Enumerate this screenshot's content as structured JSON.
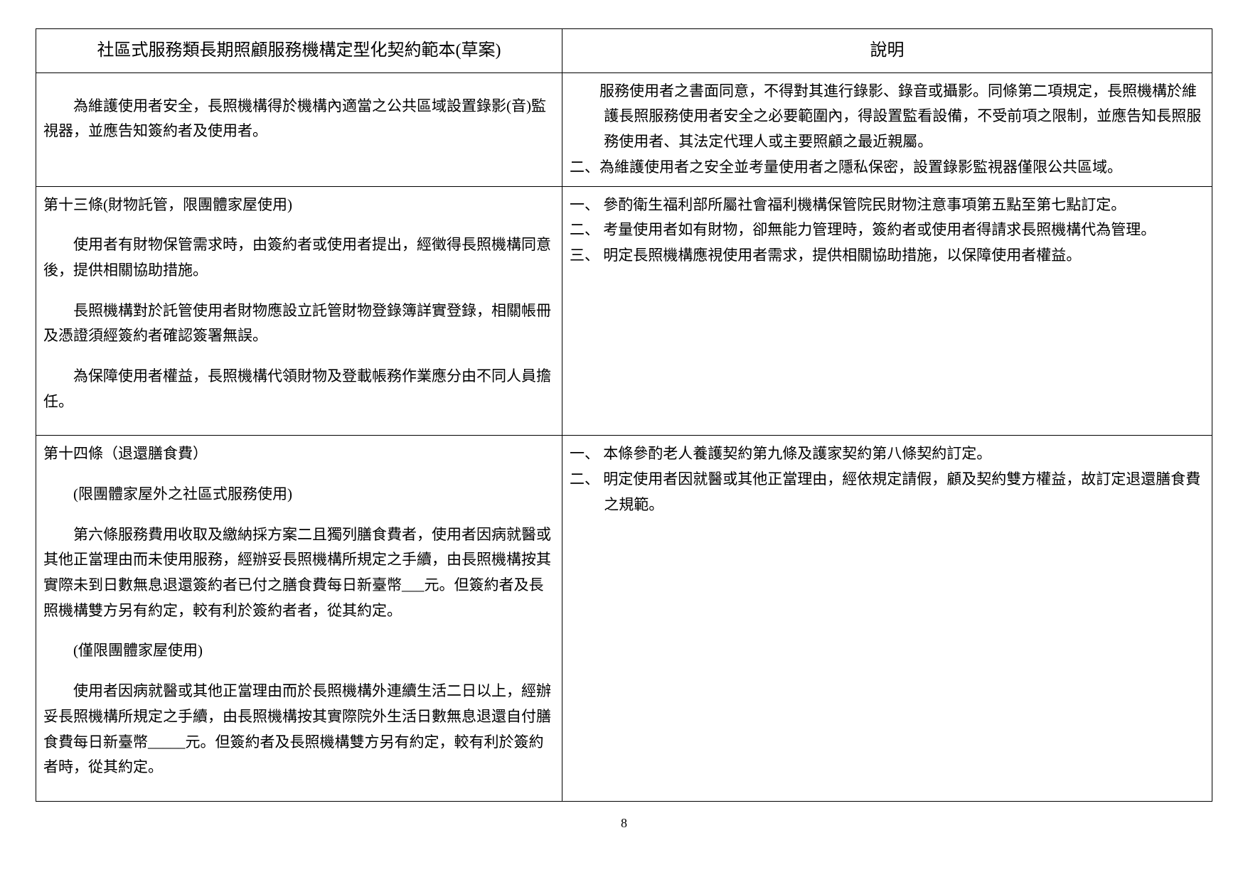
{
  "header": {
    "left": "社區式服務類長期照顧服務機構定型化契約範本(草案)",
    "right": "說明"
  },
  "rows": [
    {
      "left": [
        {
          "cls": "indent2",
          "text": "為維護使用者安全，長照機構得於機構內適當之公共區域設置錄影(音)監視器，並應告知簽約者及使用者。"
        }
      ],
      "right": [
        {
          "cls": "hanging",
          "text": "　　服務使用者之書面同意，不得對其進行錄影、錄音或攝影。同條第二項規定，長照機構於維護長照服務使用者安全之必要範圍內，得設置監看設備，不受前項之限制，並應告知長照服務使用者、其法定代理人或主要照顧之最近親屬。"
        },
        {
          "cls": "hanging",
          "text": "二、為維護使用者之安全並考量使用者之隱私保密，設置錄影監視器僅限公共區域。"
        }
      ]
    },
    {
      "left": [
        {
          "cls": "para",
          "text": "第十三條(財物託管，限團體家屋使用)"
        },
        {
          "cls": "indent2",
          "text": "使用者有財物保管需求時，由簽約者或使用者提出，經徵得長照機構同意後，提供相關協助措施。"
        },
        {
          "cls": "indent2",
          "text": "長照機構對於託管使用者財物應設立託管財物登錄簿詳實登錄，相關帳冊及憑證須經簽約者確認簽署無誤。"
        },
        {
          "cls": "indent2",
          "text": "為保障使用者權益，長照機構代領財物及登載帳務作業應分由不同人員擔任。"
        }
      ],
      "right": [
        {
          "cls": "hanging",
          "text": "一、 參酌衛生福利部所屬社會福利機構保管院民財物注意事項第五點至第七點訂定。"
        },
        {
          "cls": "hanging",
          "text": "二、 考量使用者如有財物，卻無能力管理時，簽約者或使用者得請求長照機構代為管理。"
        },
        {
          "cls": "hanging",
          "text": "三、 明定長照機構應視使用者需求，提供相關協助措施，以保障使用者權益。"
        }
      ]
    },
    {
      "left": [
        {
          "cls": "para",
          "text": "第十四條（退還膳食費）"
        },
        {
          "cls": "indent2",
          "text": "(限團體家屋外之社區式服務使用)"
        },
        {
          "cls": "indent2",
          "text": "第六條服務費用收取及繳納採方案二且獨列膳食費者，使用者因病就醫或其他正當理由而未使用服務，經辦妥長照機構所規定之手續，由長照機構按其實際未到日數無息退還簽約者已付之膳食費每日新臺幣___元。但簽約者及長照機構雙方另有約定，較有利於簽約者者，從其約定。"
        },
        {
          "cls": "indent2",
          "text": "(僅限團體家屋使用)"
        },
        {
          "cls": "indent2",
          "text": "使用者因病就醫或其他正當理由而於長照機構外連續生活二日以上，經辦妥長照機構所規定之手續，由長照機構按其實際院外生活日數無息退還自付膳食費每日新臺幣_____元。但簽約者及長照機構雙方另有約定，較有利於簽約者時，從其約定。"
        }
      ],
      "right": [
        {
          "cls": "hanging",
          "text": "一、 本條參酌老人養護契約第九條及護家契約第八條契約訂定。"
        },
        {
          "cls": "hanging",
          "text": "二、 明定使用者因就醫或其他正當理由，經依規定請假，顧及契約雙方權益，故訂定退還膳食費之規範。"
        }
      ]
    }
  ],
  "pageNumber": "8",
  "style": {
    "text_color": "#000000",
    "background_color": "#ffffff",
    "border_color": "#000000",
    "header_fontsize": 24,
    "body_fontsize": 21,
    "line_height": 1.7
  }
}
